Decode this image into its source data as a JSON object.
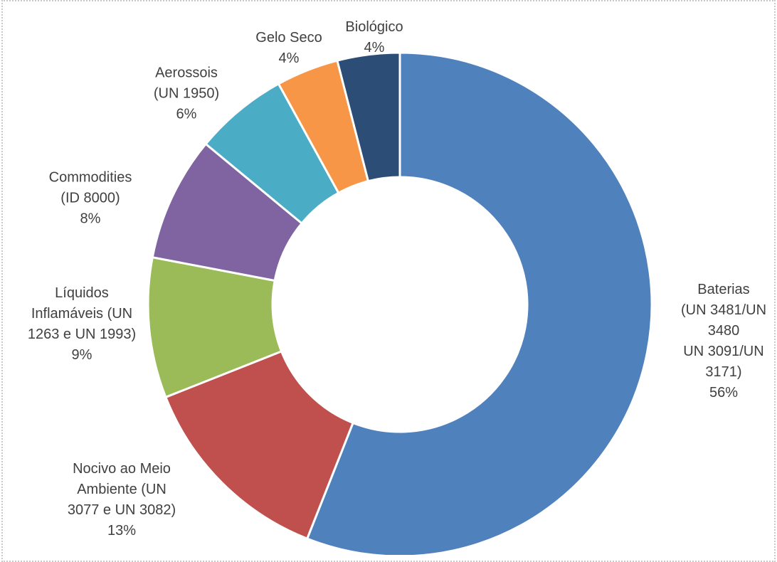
{
  "chart_data": {
    "type": "pie",
    "style": "donut",
    "title": "",
    "slices": [
      {
        "label_lines": [
          "Baterias",
          "(UN 3481/UN",
          "3480",
          "UN 3091/UN",
          "3171)"
        ],
        "value": 56,
        "pct_label": "56%",
        "color": "#4F81BD"
      },
      {
        "label_lines": [
          "Nocivo ao Meio",
          "Ambiente (UN",
          "3077 e UN 3082)"
        ],
        "value": 13,
        "pct_label": "13%",
        "color": "#C0504D"
      },
      {
        "label_lines": [
          "Líquidos",
          "Inflamáveis (UN",
          "1263 e UN 1993)"
        ],
        "value": 9,
        "pct_label": "9%",
        "color": "#9BBB59"
      },
      {
        "label_lines": [
          "Commodities",
          "(ID 8000)"
        ],
        "value": 8,
        "pct_label": "8%",
        "color": "#8064A2"
      },
      {
        "label_lines": [
          "Aerossois",
          "(UN 1950)"
        ],
        "value": 6,
        "pct_label": "6%",
        "color": "#4BACC6"
      },
      {
        "label_lines": [
          "Gelo Seco"
        ],
        "value": 4,
        "pct_label": "4%",
        "color": "#F79646"
      },
      {
        "label_lines": [
          "Biológico"
        ],
        "value": 4,
        "pct_label": "4%",
        "color": "#2C4D75"
      }
    ],
    "legend": "none",
    "data_labels": "outside"
  }
}
